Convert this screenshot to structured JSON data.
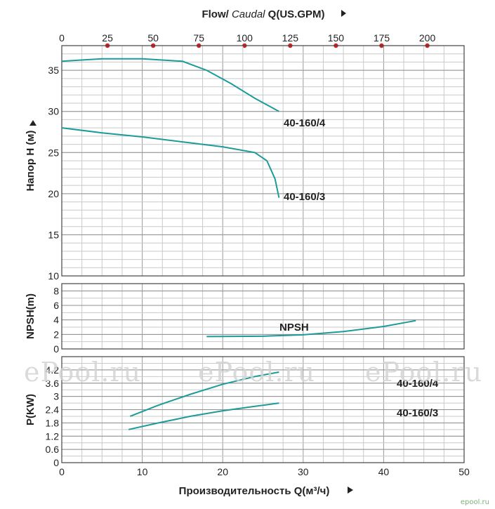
{
  "chart_data": [
    {
      "type": "line",
      "panel": "head",
      "title": "Flow/ Caudal Q(US.GPM)",
      "title_prefix": "Flow/ ",
      "title_italic": "Caudal",
      "title_suffix": " Q(US.GPM)",
      "top_axis_ticks": [
        0,
        25,
        50,
        75,
        100,
        125,
        150,
        175,
        200
      ],
      "top_axis_marker_color": "#d42020",
      "ylabel": "Напор H (м)",
      "ylim": [
        10,
        38
      ],
      "yticks": [
        10,
        15,
        20,
        25,
        30,
        35
      ],
      "xlim": [
        0,
        50
      ],
      "grid": true,
      "series": [
        {
          "name": "40-160/4",
          "x": [
            0,
            5,
            10,
            15,
            18,
            21,
            24,
            27
          ],
          "y": [
            36.1,
            36.4,
            36.4,
            36.1,
            35.0,
            33.4,
            31.6,
            30.0
          ]
        },
        {
          "name": "40-160/3",
          "x": [
            0,
            5,
            10,
            15,
            20,
            24,
            25.5,
            26.5,
            27
          ],
          "y": [
            28.0,
            27.4,
            26.9,
            26.3,
            25.7,
            25.0,
            24.0,
            21.8,
            19.5
          ]
        }
      ]
    },
    {
      "type": "line",
      "panel": "npsh",
      "ylabel": "NPSH(m)",
      "ylim": [
        0,
        9
      ],
      "yticks": [
        0,
        2,
        4,
        6,
        8
      ],
      "xlim": [
        0,
        50
      ],
      "grid": true,
      "series": [
        {
          "name": "NPSH",
          "x": [
            18,
            25,
            30,
            35,
            40,
            44
          ],
          "y": [
            1.7,
            1.75,
            1.95,
            2.4,
            3.1,
            3.9
          ]
        }
      ]
    },
    {
      "type": "line",
      "panel": "power",
      "ylabel": "P(KW)",
      "ylim": [
        0,
        4.8
      ],
      "yticks": [
        0,
        0.6,
        1.2,
        1.8,
        2.4,
        3,
        3.6,
        4.2
      ],
      "xlim": [
        0,
        50
      ],
      "xticks": [
        0,
        10,
        20,
        30,
        40,
        50
      ],
      "xlabel": "Производительность Q(м³/ч)",
      "grid": true,
      "series": [
        {
          "name": "40-160/4",
          "x": [
            8.5,
            12,
            16,
            20,
            24,
            27
          ],
          "y": [
            2.1,
            2.6,
            3.1,
            3.55,
            3.9,
            4.1
          ]
        },
        {
          "name": "40-160/3",
          "x": [
            8.3,
            12,
            16,
            20,
            24,
            27
          ],
          "y": [
            1.5,
            1.8,
            2.1,
            2.35,
            2.55,
            2.7
          ]
        }
      ]
    }
  ],
  "colors": {
    "curve": "#1c9b9a",
    "grid": "#c9c9c9",
    "frame": "#444444",
    "text": "#222222"
  },
  "watermark": {
    "text": "ePool.ru"
  },
  "credit": "epool.ru"
}
